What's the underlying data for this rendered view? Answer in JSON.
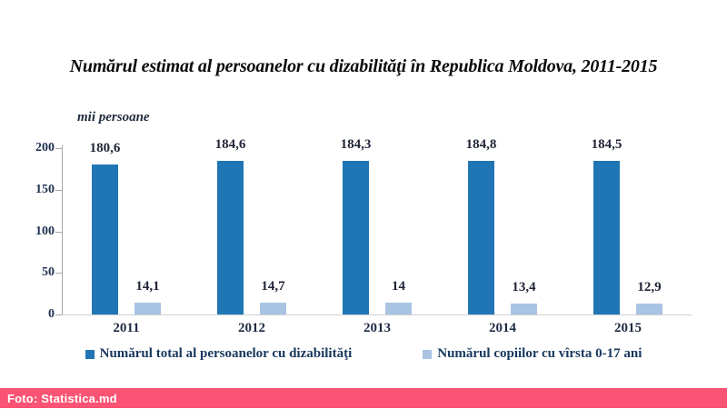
{
  "page": {
    "title": "Numărul estimat al persoanelor cu dizabilităţi în Republica Moldova, 2011-2015"
  },
  "footer": {
    "label": "Foto: Statistica.md"
  },
  "colors": {
    "series1": "#2076b4",
    "series2": "#a8c4e2",
    "footer_bg": "#fb5373",
    "axis": "#a6a6a6",
    "baseline": "#d0d0d0"
  },
  "chart_data": {
    "type": "bar",
    "title": "Numărul estimat al persoanelor cu dizabilităţi în Republica Moldova, 2011-2015",
    "unit_label": "mii persoane",
    "categories": [
      "2011",
      "2012",
      "2013",
      "2014",
      "2015"
    ],
    "series": [
      {
        "name": "Numărul total al persoanelor cu dizabilităţi",
        "color": "#2076b4",
        "values": [
          180.6,
          184.6,
          184.3,
          184.8,
          184.5
        ],
        "display_labels": [
          "180,6",
          "184,6",
          "184,3",
          "184,8",
          "184,5"
        ]
      },
      {
        "name": "Numărul copiilor cu vîrsta 0-17 ani",
        "color": "#a8c4e2",
        "values": [
          14.1,
          14.7,
          14.0,
          13.4,
          12.9
        ],
        "display_labels": [
          "14,1",
          "14,7",
          "14",
          "13,4",
          "12,9"
        ]
      }
    ],
    "xlabel": "",
    "ylabel": "mii persoane",
    "ylim": [
      0,
      200
    ],
    "yticks": [
      0,
      50,
      100,
      150,
      200
    ],
    "grid": false,
    "legend_position": "bottom"
  }
}
